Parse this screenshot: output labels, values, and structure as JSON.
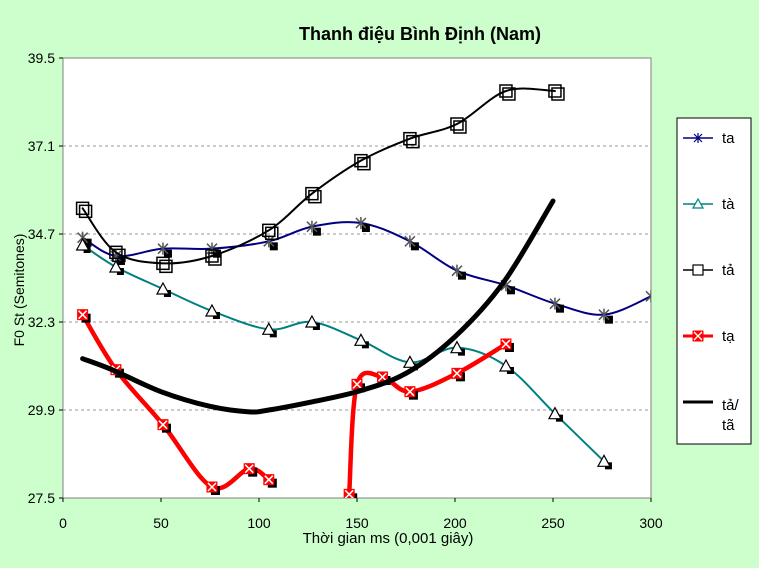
{
  "chart_data": {
    "type": "line",
    "title": "Thanh điệu Bình Định (Nam)",
    "xlabel": "Thời gian ms (0,001 giây)",
    "ylabel": "F0 St (Semitones)",
    "xlim": [
      0,
      300
    ],
    "ylim": [
      27.5,
      39.5
    ],
    "xticks": [
      "0",
      "50",
      "100",
      "150",
      "200",
      "250",
      "300"
    ],
    "yticks": [
      "27.5",
      "29.9",
      "32.3",
      "34.7",
      "37.1",
      "39.5"
    ],
    "grid": "horizontal dashed",
    "legend_position": "right",
    "series": [
      {
        "name": "ta",
        "color": "#000080",
        "marker": "asterisk",
        "x": [
          10,
          27,
          51,
          76,
          105,
          127,
          152,
          177,
          201,
          226,
          251,
          276,
          300
        ],
        "y": [
          34.6,
          34.1,
          34.3,
          34.3,
          34.5,
          34.9,
          35.0,
          34.5,
          33.7,
          33.3,
          32.8,
          32.5,
          33.0
        ]
      },
      {
        "name": "tà",
        "color": "#008080",
        "marker": "triangle",
        "x": [
          10,
          27,
          51,
          76,
          105,
          127,
          152,
          177,
          201,
          226,
          251,
          276
        ],
        "y": [
          34.4,
          33.8,
          33.2,
          32.6,
          32.1,
          32.3,
          31.8,
          31.2,
          31.6,
          31.1,
          29.8,
          28.5
        ]
      },
      {
        "name": "tả",
        "color": "#000000",
        "marker": "square",
        "x": [
          10,
          27,
          51,
          76,
          105,
          127,
          152,
          177,
          201,
          226,
          251
        ],
        "y": [
          35.4,
          34.2,
          33.9,
          34.1,
          34.8,
          35.8,
          36.7,
          37.3,
          37.7,
          38.6,
          38.6
        ]
      },
      {
        "name": "tạ",
        "color": "#ff0000",
        "marker": "x-square",
        "segments": [
          {
            "x": [
              10,
              27,
              51,
              76,
              95,
              105
            ],
            "y": [
              32.5,
              31.0,
              29.5,
              27.8,
              28.3,
              28.0
            ]
          },
          {
            "x": [
              146,
              150,
              163,
              177,
              201,
              226
            ],
            "y": [
              27.6,
              30.6,
              30.8,
              30.4,
              30.9,
              31.7
            ]
          }
        ]
      },
      {
        "name": "tả/ tã",
        "color": "#000000",
        "marker": "none",
        "x": [
          10,
          25,
          50,
          75,
          95,
          105,
          125,
          150,
          175,
          200,
          225,
          250
        ],
        "y": [
          31.3,
          31.0,
          30.4,
          30.0,
          29.85,
          29.9,
          30.1,
          30.4,
          30.9,
          31.9,
          33.4,
          35.6
        ]
      }
    ],
    "legend_label_ta_dac": "tả/",
    "legend_label_ta_nga": "tã"
  }
}
